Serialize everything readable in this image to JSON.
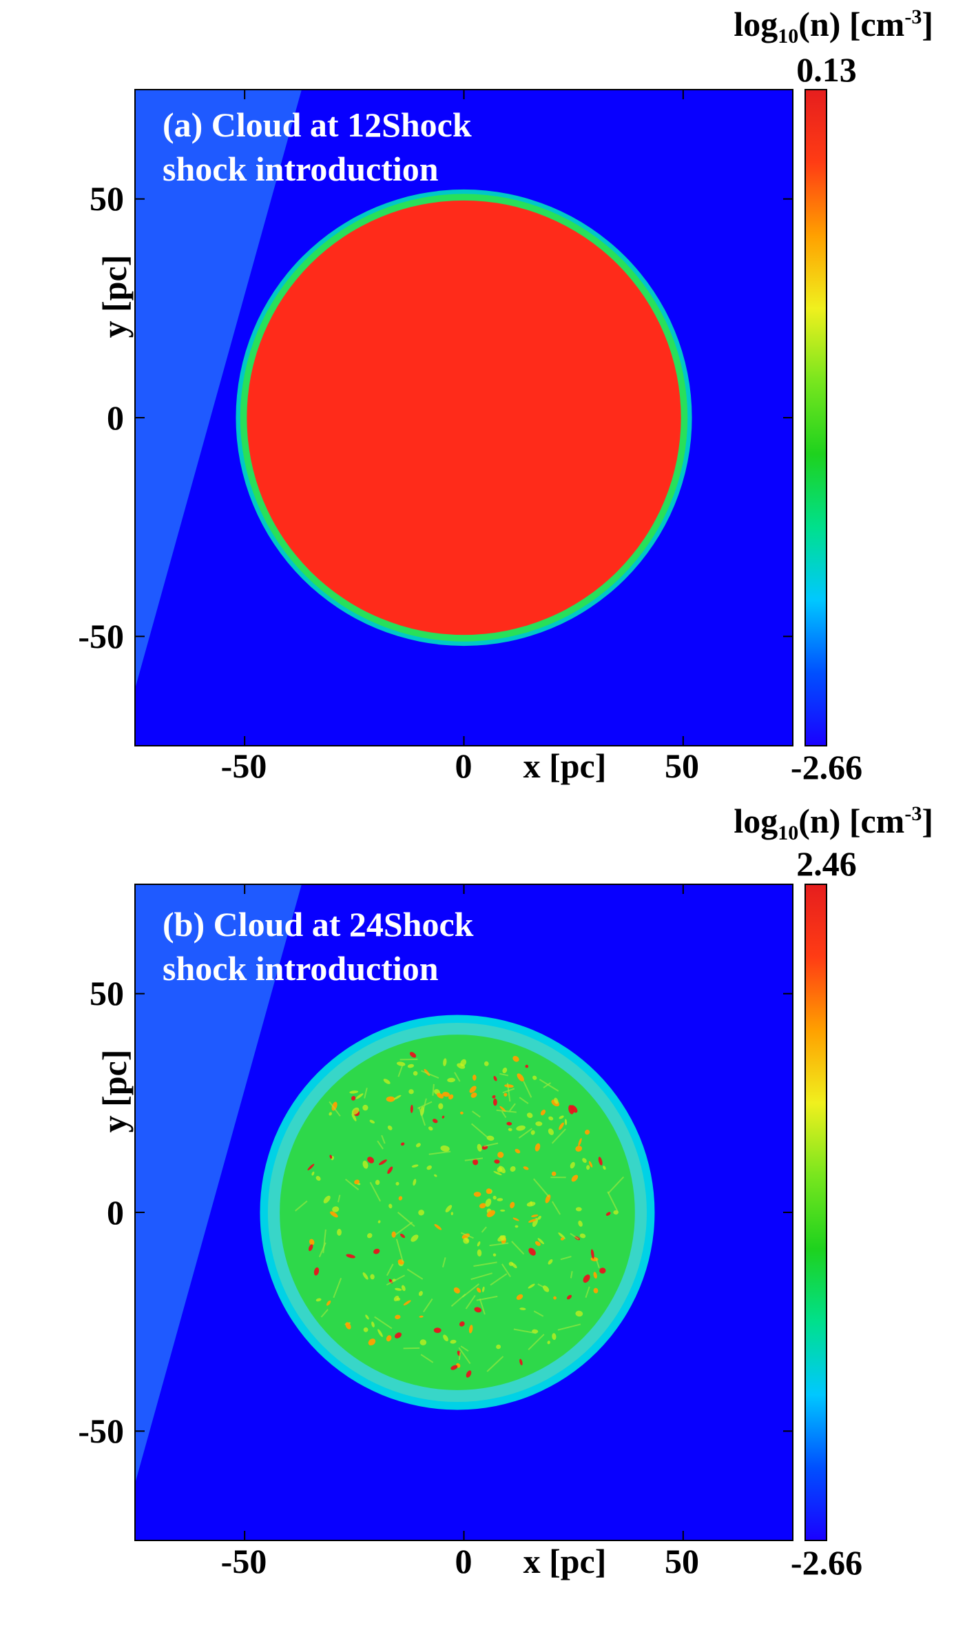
{
  "chart_data": [
    {
      "type": "heatmap",
      "panel_label": "(a) Cloud at 12Shock",
      "panel_label_line2": "shock introduction",
      "xlabel": "x [pc]",
      "ylabel": "y [pc]",
      "xlim": [
        -75,
        75
      ],
      "ylim": [
        -75,
        75
      ],
      "xticks": [
        -50,
        0,
        50
      ],
      "yticks": [
        50,
        0,
        -50
      ],
      "colorbar": {
        "label": "log10(n) [cm-3]",
        "label_base": "log",
        "label_sub": "10",
        "label_mid": "(n) [cm",
        "label_sup": "-3",
        "label_end": "]",
        "max": 0.13,
        "min": -2.66,
        "max_label": "0.13",
        "min_label": "-2.66",
        "colormap": [
          "#1a00ff",
          "#0050ff",
          "#00c8ff",
          "#00e08c",
          "#1ed21e",
          "#78e61e",
          "#f0f01e",
          "#ffa000",
          "#ff3c14",
          "#e61e1e"
        ]
      },
      "cloud": {
        "center_x": 0,
        "center_y": 0,
        "radius": 52,
        "core_radius": 49.5,
        "core_color": "#ff2b1a",
        "rim_color": "#28e05a",
        "edge_color": "#00c8c8",
        "texture": "smooth"
      },
      "background_color": "#0800ff",
      "shocked_region": {
        "top_x": -37,
        "bottom_x": -75,
        "bottom_y": -62,
        "color": "#1f5aff"
      }
    },
    {
      "type": "heatmap",
      "panel_label": "(b) Cloud at 24Shock",
      "panel_label_line2": "shock introduction",
      "xlabel": "x [pc]",
      "ylabel": "y [pc]",
      "xlim": [
        -75,
        75
      ],
      "ylim": [
        -75,
        75
      ],
      "xticks": [
        -50,
        0,
        50
      ],
      "yticks": [
        50,
        0,
        -50
      ],
      "colorbar": {
        "label": "log10(n) [cm-3]",
        "label_base": "log",
        "label_sub": "10",
        "label_mid": "(n) [cm",
        "label_sup": "-3",
        "label_end": "]",
        "max": 2.46,
        "min": -2.66,
        "max_label": "2.46",
        "min_label": "-2.66",
        "colormap": [
          "#1a00ff",
          "#0050ff",
          "#00c8ff",
          "#00e08c",
          "#1ed21e",
          "#78e61e",
          "#f0f01e",
          "#ffa000",
          "#ff3c14",
          "#e61e1e"
        ]
      },
      "cloud": {
        "center_x": -1.5,
        "center_y": 0,
        "radius": 45,
        "core_radius": 40.5,
        "core_color": "#2ed84a",
        "rim_color": "#38d6c8",
        "edge_color": "#00d2e6",
        "texture": "clumpy"
      },
      "background_color": "#0800ff",
      "shocked_region": {
        "top_x": -37,
        "bottom_x": -75,
        "bottom_y": -62,
        "color": "#1f5aff"
      }
    }
  ]
}
